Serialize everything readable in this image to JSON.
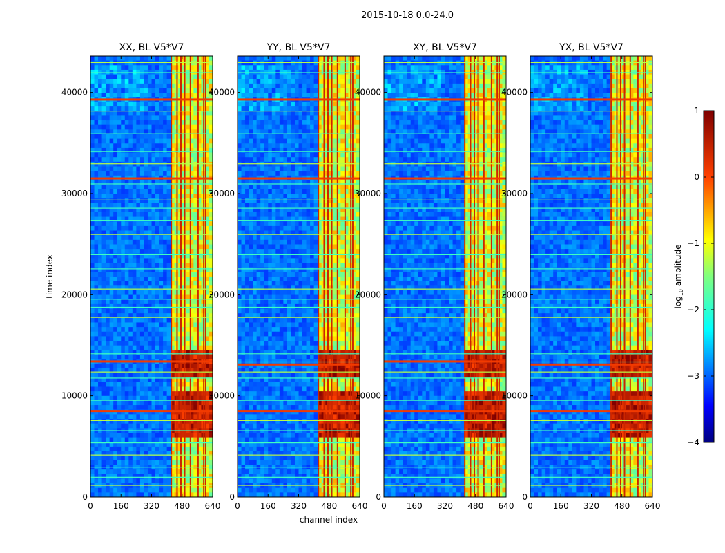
{
  "chart_data": {
    "type": "heatmap",
    "suptitle": "2015-10-18 0.0-24.0",
    "xlabel": "channel index",
    "ylabel": "time index",
    "xlim": [
      0,
      640
    ],
    "ylim": [
      0,
      43600
    ],
    "x_ticks": [
      "0",
      "160",
      "320",
      "480",
      "640"
    ],
    "y_ticks": [
      "0",
      "10000",
      "20000",
      "30000",
      "40000"
    ],
    "panels": [
      {
        "title": "XX, BL V5*V7",
        "polarization": "XX",
        "strong_rows": [
          8500,
          13400,
          31500,
          39300
        ]
      },
      {
        "title": "YY, BL V5*V7",
        "polarization": "YY",
        "strong_rows": [
          8500,
          13100,
          31500,
          39300
        ]
      },
      {
        "title": "XY, BL V5*V7",
        "polarization": "XY",
        "strong_rows": [
          8500,
          13400,
          31500,
          39300
        ]
      },
      {
        "title": "YX, BL V5*V7",
        "polarization": "YX",
        "strong_rows": [
          8500,
          13100,
          31500,
          39300
        ]
      }
    ],
    "rfi_band": {
      "start": 410,
      "end": 640
    },
    "hot_columns": [
      420,
      450,
      470,
      490,
      520,
      560,
      590,
      600
    ],
    "horizontal_lines": [
      1200,
      2000,
      3000,
      4200,
      5400,
      6600,
      7600,
      9600,
      11800,
      12400,
      13400,
      14200,
      17800,
      18800,
      19600,
      20600,
      22600,
      24000,
      26000,
      27400,
      28600,
      29400,
      31000,
      31500,
      33000,
      34200,
      36000,
      38200,
      39300,
      42000,
      43000
    ],
    "colorbar": {
      "label_main": "log",
      "label_sub": "10",
      "label_rest": " amplitude",
      "range": [
        -4,
        1
      ],
      "ticks": [
        "1",
        "0",
        "−1",
        "−2",
        "−3",
        "−4"
      ],
      "colormap": "jet"
    }
  }
}
